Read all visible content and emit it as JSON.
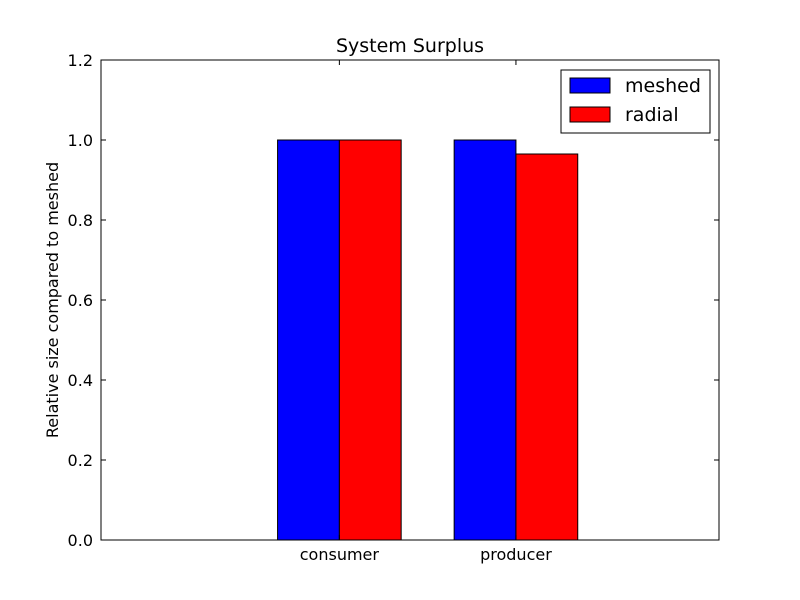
{
  "chart_data": {
    "type": "bar",
    "title": "System Surplus",
    "xlabel": "",
    "ylabel": "Relative size compared to meshed",
    "categories": [
      "consumer",
      "producer"
    ],
    "series": [
      {
        "name": "meshed",
        "values": [
          1.0,
          1.0
        ],
        "color": "#0000ff"
      },
      {
        "name": "radial",
        "values": [
          1.0,
          0.965
        ],
        "color": "#ff0000"
      }
    ],
    "xlim": [
      -1.0,
      2.5
    ],
    "ylim": [
      0.0,
      1.2
    ],
    "yticks": [
      "0.0",
      "0.2",
      "0.4",
      "0.6",
      "0.8",
      "1.0",
      "1.2"
    ],
    "grid": false,
    "legend_position": "top-right"
  }
}
